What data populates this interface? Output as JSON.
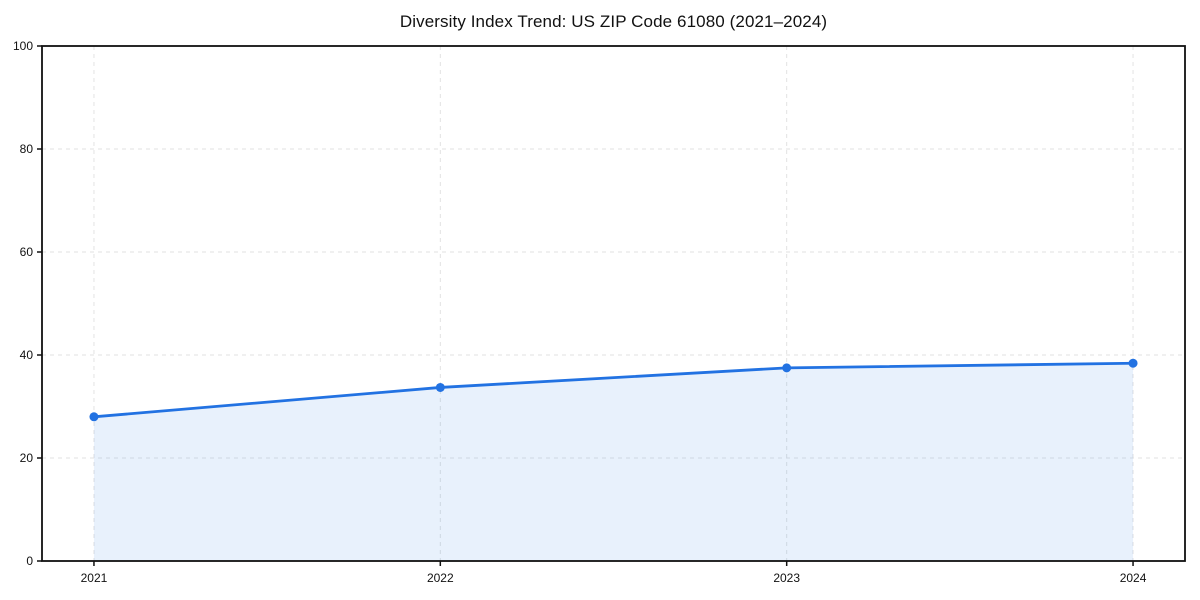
{
  "chart_data": {
    "type": "line",
    "title": "Diversity Index Trend: US ZIP Code 61080 (2021–2024)",
    "x": [
      2021,
      2022,
      2023,
      2024
    ],
    "x_labels": [
      "2021",
      "2022",
      "2023",
      "2024"
    ],
    "series": [
      {
        "name": "Diversity Index",
        "values": [
          28.0,
          33.7,
          37.5,
          38.4
        ]
      }
    ],
    "xlabel": "",
    "ylabel": "",
    "ylim": [
      0,
      100
    ],
    "yticks": [
      0,
      20,
      40,
      60,
      80,
      100
    ],
    "ytick_labels": [
      "0",
      "20",
      "40",
      "60",
      "80",
      "100"
    ],
    "xlim": [
      2020.85,
      2024.15
    ],
    "grid": "dashed-both-axes",
    "legend": "none",
    "area_fill": true,
    "marker": "circle",
    "colors": {
      "line": "#2272e2",
      "marker": "#2272e2",
      "fill": "#2272e2",
      "fill_opacity": 0.1,
      "grid": "#e2e2e2",
      "axis": "#111111",
      "text": "#111111"
    }
  }
}
